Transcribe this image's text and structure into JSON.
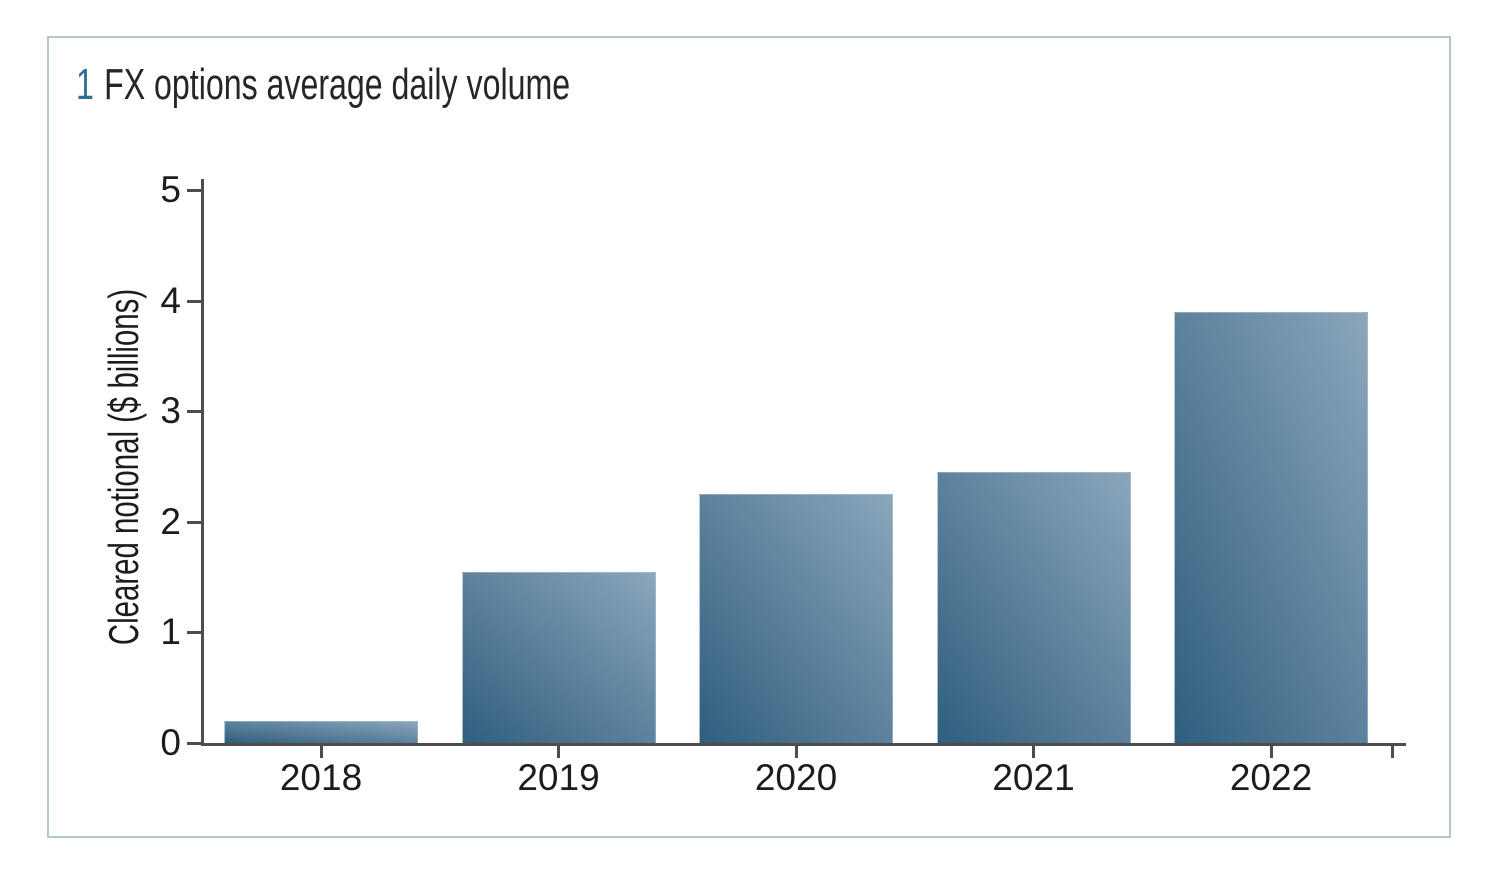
{
  "figure": {
    "number": "1",
    "title": "FX options average daily volume"
  },
  "chart_data": {
    "type": "bar",
    "title": "1 FX options average daily volume",
    "categories": [
      "2018",
      "2019",
      "2020",
      "2021",
      "2022"
    ],
    "values": [
      0.2,
      1.55,
      2.25,
      2.45,
      3.9
    ],
    "xlabel": "",
    "ylabel": "Cleared notional ($ billions)",
    "ylim": [
      0,
      5
    ],
    "yticks": [
      0,
      1,
      2,
      3,
      4,
      5
    ],
    "grid": false,
    "legend": false,
    "bar_gradient": {
      "from": "#305e7e",
      "to": "#8aa6bc",
      "direction": "bottom-left to top-right"
    }
  },
  "colors": {
    "accent_number": "#306e92",
    "title_text": "#262626",
    "axis_line": "#4d4d4f",
    "tick_text": "#1c1c1c",
    "panel_border": "#b3c7d2",
    "background": "#ffffff"
  }
}
